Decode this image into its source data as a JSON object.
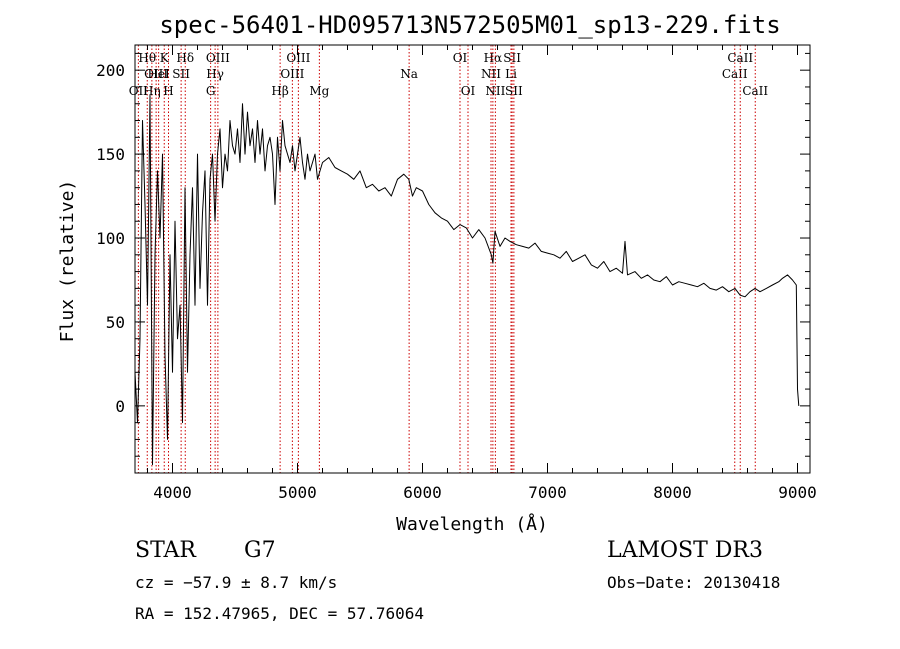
{
  "chart_data": {
    "type": "line",
    "title": "spec-56401-HD095713N572505M01_sp13-229.fits",
    "xlabel": "Wavelength (Å)",
    "ylabel": "Flux (relative)",
    "xlim": [
      3700,
      9100
    ],
    "ylim": [
      -40,
      215
    ],
    "x_ticks": [
      4000,
      5000,
      6000,
      7000,
      8000,
      9000
    ],
    "x_tick_labels": [
      "4000",
      "5000",
      "6000",
      "7000",
      "8000",
      "9000"
    ],
    "y_ticks": [
      0,
      50,
      100,
      150,
      200
    ],
    "y_tick_labels": [
      "0",
      "50",
      "100",
      "150",
      "200"
    ],
    "grid": false,
    "series": [
      {
        "name": "spectrum",
        "x": [
          3700,
          3720,
          3740,
          3760,
          3780,
          3800,
          3820,
          3840,
          3860,
          3880,
          3900,
          3920,
          3940,
          3960,
          3980,
          4000,
          4020,
          4040,
          4060,
          4080,
          4100,
          4120,
          4140,
          4160,
          4180,
          4200,
          4220,
          4240,
          4260,
          4280,
          4300,
          4320,
          4340,
          4360,
          4380,
          4400,
          4420,
          4440,
          4460,
          4480,
          4500,
          4520,
          4540,
          4560,
          4580,
          4600,
          4620,
          4640,
          4660,
          4680,
          4700,
          4720,
          4740,
          4760,
          4780,
          4800,
          4820,
          4840,
          4860,
          4880,
          4900,
          4920,
          4940,
          4960,
          4980,
          5000,
          5020,
          5040,
          5060,
          5080,
          5100,
          5120,
          5140,
          5160,
          5180,
          5200,
          5250,
          5300,
          5350,
          5400,
          5450,
          5500,
          5550,
          5600,
          5650,
          5700,
          5750,
          5800,
          5850,
          5890,
          5920,
          5950,
          6000,
          6050,
          6100,
          6150,
          6200,
          6250,
          6300,
          6350,
          6400,
          6450,
          6500,
          6550,
          6563,
          6580,
          6620,
          6660,
          6700,
          6750,
          6800,
          6850,
          6900,
          6950,
          7000,
          7050,
          7100,
          7150,
          7200,
          7250,
          7300,
          7350,
          7400,
          7450,
          7500,
          7550,
          7600,
          7620,
          7640,
          7700,
          7750,
          7800,
          7850,
          7900,
          7950,
          8000,
          8050,
          8100,
          8150,
          8200,
          8250,
          8300,
          8350,
          8400,
          8450,
          8500,
          8540,
          8580,
          8620,
          8660,
          8700,
          8750,
          8800,
          8850,
          8880,
          8920,
          8960,
          8990,
          9000,
          9010
        ],
        "y": [
          20,
          -10,
          40,
          170,
          120,
          60,
          185,
          -35,
          90,
          140,
          100,
          150,
          30,
          -20,
          90,
          20,
          110,
          40,
          60,
          -10,
          130,
          20,
          90,
          130,
          60,
          150,
          70,
          115,
          140,
          60,
          135,
          150,
          110,
          150,
          165,
          130,
          150,
          140,
          170,
          155,
          150,
          165,
          145,
          180,
          150,
          175,
          155,
          165,
          145,
          170,
          150,
          165,
          140,
          155,
          160,
          150,
          120,
          160,
          140,
          170,
          155,
          150,
          145,
          155,
          140,
          150,
          160,
          145,
          135,
          150,
          140,
          145,
          150,
          135,
          140,
          145,
          148,
          142,
          140,
          138,
          135,
          140,
          130,
          132,
          128,
          130,
          125,
          135,
          138,
          135,
          125,
          130,
          128,
          120,
          115,
          112,
          110,
          105,
          108,
          106,
          100,
          105,
          100,
          90,
          85,
          104,
          95,
          100,
          98,
          96,
          95,
          94,
          97,
          92,
          91,
          90,
          88,
          92,
          86,
          88,
          90,
          84,
          82,
          86,
          80,
          82,
          79,
          98,
          78,
          80,
          76,
          78,
          75,
          74,
          77,
          72,
          74,
          73,
          72,
          71,
          73,
          70,
          69,
          71,
          68,
          70,
          66,
          65,
          68,
          70,
          68,
          70,
          72,
          74,
          76,
          78,
          75,
          72,
          10,
          0
        ]
      }
    ],
    "line_markers": [
      {
        "label": "OII",
        "x": 3727,
        "row": 3
      },
      {
        "label": "Hθ",
        "x": 3798,
        "row": 1
      },
      {
        "label": "OIII",
        "x": 3869,
        "row": 2
      },
      {
        "label": "HeI",
        "x": 3889,
        "row": 2
      },
      {
        "label": "Hη",
        "x": 3835,
        "row": 3
      },
      {
        "label": "K",
        "x": 3934,
        "row": 1
      },
      {
        "label": "H",
        "x": 3968,
        "row": 3
      },
      {
        "label": "SII",
        "x": 4069,
        "row": 2
      },
      {
        "label": "Hδ",
        "x": 4102,
        "row": 1
      },
      {
        "label": "OIII",
        "x": 4363,
        "row": 1
      },
      {
        "label": "Hγ",
        "x": 4341,
        "row": 2
      },
      {
        "label": "G",
        "x": 4305,
        "row": 3
      },
      {
        "label": "Hβ",
        "x": 4861,
        "row": 3
      },
      {
        "label": "OIII",
        "x": 5007,
        "row": 1
      },
      {
        "label": "OIII",
        "x": 4959,
        "row": 2
      },
      {
        "label": "Mg",
        "x": 5175,
        "row": 3
      },
      {
        "label": "Na",
        "x": 5893,
        "row": 2
      },
      {
        "label": "OI",
        "x": 6300,
        "row": 1
      },
      {
        "label": "OI",
        "x": 6364,
        "row": 3
      },
      {
        "label": "Hα",
        "x": 6563,
        "row": 1
      },
      {
        "label": "NII",
        "x": 6548,
        "row": 2
      },
      {
        "label": "NII",
        "x": 6583,
        "row": 3
      },
      {
        "label": "SII",
        "x": 6717,
        "row": 1
      },
      {
        "label": "Li",
        "x": 6708,
        "row": 2
      },
      {
        "label": "SII",
        "x": 6731,
        "row": 3
      },
      {
        "label": "CaII",
        "x": 8498,
        "row": 2
      },
      {
        "label": "CaII",
        "x": 8542,
        "row": 1
      },
      {
        "label": "CaII",
        "x": 8662,
        "row": 3
      }
    ]
  },
  "info": {
    "object_class": "STAR",
    "subclass": "G7",
    "velocity": "cz = −57.9 ± 8.7 km/s",
    "coords": "RA = 152.47965, DEC =  57.76064",
    "survey": "LAMOST DR3",
    "obs_date": "Obs−Date: 20130418"
  },
  "colors": {
    "line_marker": "#cc0000",
    "spectrum": "#000000"
  }
}
